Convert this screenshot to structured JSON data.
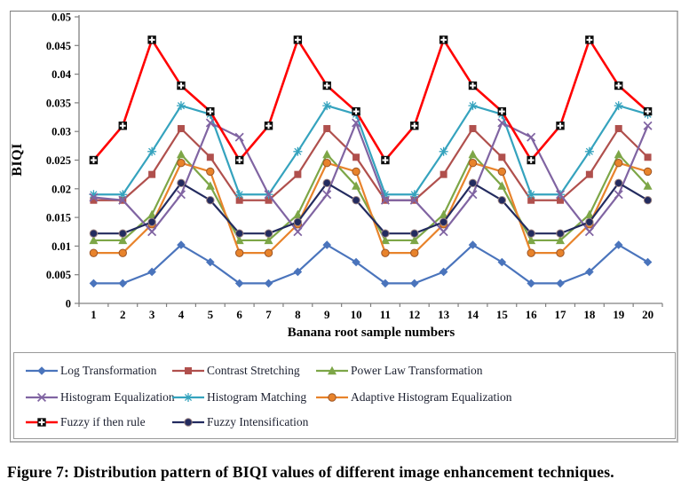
{
  "figure": {
    "caption": "Figure 7: Distribution pattern of BIQI values of different image enhancement techniques."
  },
  "chart_data": {
    "type": "line",
    "title": "",
    "xlabel": "Banana root sample numbers",
    "ylabel": "BIQI",
    "x": [
      1,
      2,
      3,
      4,
      5,
      6,
      7,
      8,
      9,
      10,
      11,
      12,
      13,
      14,
      15,
      16,
      17,
      18,
      19,
      20
    ],
    "ylim": [
      0,
      0.05
    ],
    "ytick_step": 0.005,
    "ytick_labels": [
      "0",
      "0.005",
      "0.01",
      "0.015",
      "0.02",
      "0.025",
      "0.03",
      "0.035",
      "0.04",
      "0.045",
      "0.05"
    ],
    "grid": false,
    "legend_position": "bottom",
    "axis_color": "#808080",
    "series": [
      {
        "name": "Log Transformation",
        "color": "#4A74BC",
        "marker": "diamond",
        "values": [
          0.0035,
          0.0035,
          0.0055,
          0.0102,
          0.0072,
          0.0035,
          0.0035,
          0.0055,
          0.0102,
          0.0072,
          0.0035,
          0.0035,
          0.0055,
          0.0102,
          0.0072,
          0.0035,
          0.0035,
          0.0055,
          0.0102,
          0.0072
        ]
      },
      {
        "name": "Contrast Stretching",
        "color": "#B0504D",
        "marker": "square",
        "values": [
          0.018,
          0.018,
          0.0225,
          0.0305,
          0.0255,
          0.018,
          0.018,
          0.0225,
          0.0305,
          0.0255,
          0.018,
          0.018,
          0.0225,
          0.0305,
          0.0255,
          0.018,
          0.018,
          0.0225,
          0.0305,
          0.0255
        ]
      },
      {
        "name": "Power Law Transformation",
        "color": "#7DA647",
        "marker": "triangle",
        "values": [
          0.011,
          0.011,
          0.0155,
          0.026,
          0.0205,
          0.011,
          0.011,
          0.0155,
          0.026,
          0.0205,
          0.011,
          0.011,
          0.0155,
          0.026,
          0.0205,
          0.011,
          0.011,
          0.0155,
          0.026,
          0.0205
        ]
      },
      {
        "name": "Histogram Equalization",
        "color": "#8064A2",
        "marker": "x",
        "values": [
          0.0185,
          0.018,
          0.0125,
          0.019,
          0.0315,
          0.029,
          0.019,
          0.0125,
          0.019,
          0.0315,
          0.018,
          0.018,
          0.0125,
          0.019,
          0.0315,
          0.029,
          0.019,
          0.0125,
          0.019,
          0.031
        ]
      },
      {
        "name": "Histogram Matching",
        "color": "#35A3BE",
        "marker": "asterisk",
        "values": [
          0.019,
          0.019,
          0.0265,
          0.0345,
          0.033,
          0.019,
          0.019,
          0.0265,
          0.0345,
          0.033,
          0.019,
          0.019,
          0.0265,
          0.0345,
          0.033,
          0.019,
          0.019,
          0.0265,
          0.0345,
          0.033
        ]
      },
      {
        "name": "Adaptive Histogram Equalization",
        "color": "#E8832B",
        "marker": "circle",
        "marker_stroke": "#9c5526",
        "values": [
          0.0088,
          0.0088,
          0.0138,
          0.0245,
          0.023,
          0.0088,
          0.0088,
          0.0138,
          0.0245,
          0.023,
          0.0088,
          0.0088,
          0.0138,
          0.0245,
          0.023,
          0.0088,
          0.0088,
          0.0138,
          0.0245,
          0.023
        ]
      },
      {
        "name": "Fuzzy if then rule",
        "color": "#FF0000",
        "marker": "square-plus",
        "marker_color": "#0d0d0d",
        "values": [
          0.025,
          0.031,
          0.046,
          0.038,
          0.0335,
          0.025,
          0.031,
          0.046,
          0.038,
          0.0335,
          0.025,
          0.031,
          0.046,
          0.038,
          0.0335,
          0.025,
          0.031,
          0.046,
          0.038,
          0.0335
        ]
      },
      {
        "name": "Fuzzy Intensification",
        "color": "#232B5F",
        "marker": "dot",
        "marker_stroke": "#9b8382",
        "values": [
          0.0122,
          0.0122,
          0.0142,
          0.021,
          0.018,
          0.0122,
          0.0122,
          0.0142,
          0.021,
          0.018,
          0.0122,
          0.0122,
          0.0142,
          0.021,
          0.018,
          0.0122,
          0.0122,
          0.0142,
          0.021,
          0.018
        ]
      }
    ]
  }
}
